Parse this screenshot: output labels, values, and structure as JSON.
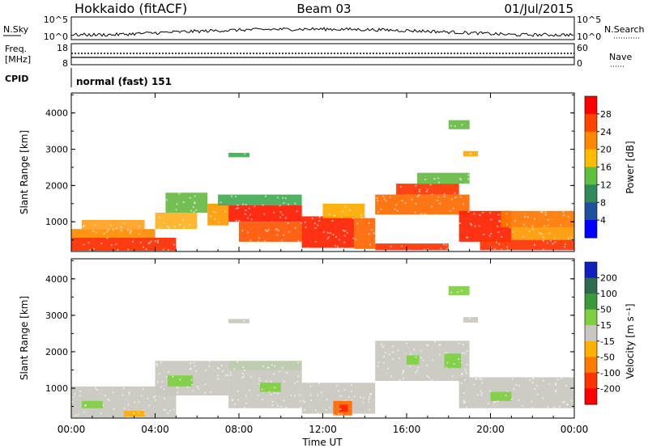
{
  "header": {
    "station": "Hokkaido (fitACF)",
    "beam": "Beam 03",
    "date": "01/Jul/2015"
  },
  "noise_panel": {
    "left_label": "N.Sky",
    "right_label": "N.Search",
    "left_ticks": [
      "10^5",
      "10^0"
    ],
    "right_ticks": [
      "10^5",
      "10^0"
    ]
  },
  "freq_panel": {
    "left_label_top": "Freq.",
    "left_label_bottom": "[MHz]",
    "right_label": "Nave",
    "left_ticks": [
      "18",
      "8"
    ],
    "right_ticks": [
      "60",
      "0"
    ]
  },
  "cpid_panel": {
    "label": "CPID",
    "text": "normal (fast) 151"
  },
  "chart_data": [
    {
      "type": "heatmap",
      "name": "power",
      "ylabel": "Slant Range [km]",
      "ylim": [
        180,
        4550
      ],
      "yticks": [
        "1000",
        "2000",
        "3000",
        "4000"
      ],
      "xticks": [
        "00:00",
        "04:00",
        "08:00",
        "12:00",
        "16:00",
        "20:00",
        "00:00"
      ],
      "xlim_hours": [
        0,
        24
      ],
      "colorbar": {
        "label": "Power [dB]",
        "ticks": [
          "28",
          "24",
          "20",
          "16",
          "12",
          "8",
          "4"
        ],
        "colors": [
          "#ff0000",
          "#ff4400",
          "#ff8800",
          "#ffbb00",
          "#5fbf3f",
          "#2e8b57",
          "#1e50a0",
          "#0000ff"
        ]
      },
      "regions": [
        {
          "t0": 0.0,
          "t1": 5.0,
          "r0": 200,
          "r1": 560,
          "color": "#ff2a00"
        },
        {
          "t0": 0.0,
          "t1": 4.0,
          "r0": 560,
          "r1": 800,
          "color": "#ff8c00"
        },
        {
          "t0": 0.5,
          "t1": 3.5,
          "r0": 800,
          "r1": 1050,
          "color": "#ffa020"
        },
        {
          "t0": 4.0,
          "t1": 6.0,
          "r0": 800,
          "r1": 1250,
          "color": "#ffb020"
        },
        {
          "t0": 4.5,
          "t1": 6.5,
          "r0": 1250,
          "r1": 1800,
          "color": "#66bb44"
        },
        {
          "t0": 6.5,
          "t1": 7.5,
          "r0": 900,
          "r1": 1500,
          "color": "#ff9900"
        },
        {
          "t0": 7.5,
          "t1": 11.0,
          "r0": 1000,
          "r1": 1450,
          "color": "#ff1a00"
        },
        {
          "t0": 8.0,
          "t1": 11.0,
          "r0": 450,
          "r1": 1000,
          "color": "#ff5500"
        },
        {
          "t0": 7.0,
          "t1": 11.0,
          "r0": 1450,
          "r1": 1750,
          "color": "#44aa55"
        },
        {
          "t0": 11.0,
          "t1": 13.5,
          "r0": 280,
          "r1": 1150,
          "color": "#ff2200"
        },
        {
          "t0": 13.5,
          "t1": 14.5,
          "r0": 250,
          "r1": 1100,
          "color": "#ff6600"
        },
        {
          "t0": 14.5,
          "t1": 19.0,
          "r0": 1200,
          "r1": 1750,
          "color": "#ff6a00"
        },
        {
          "t0": 15.5,
          "t1": 18.5,
          "r0": 1750,
          "r1": 2050,
          "color": "#ff3300"
        },
        {
          "t0": 16.5,
          "t1": 19.0,
          "r0": 2050,
          "r1": 2350,
          "color": "#66bb44"
        },
        {
          "t0": 18.5,
          "t1": 21.0,
          "r0": 450,
          "r1": 1300,
          "color": "#ff2200"
        },
        {
          "t0": 20.5,
          "t1": 24.0,
          "r0": 850,
          "r1": 1300,
          "color": "#ff7700"
        },
        {
          "t0": 19.5,
          "t1": 24.0,
          "r0": 220,
          "r1": 500,
          "color": "#ff3300"
        },
        {
          "t0": 21.0,
          "t1": 24.0,
          "r0": 500,
          "r1": 850,
          "color": "#ff9900"
        },
        {
          "t0": 14.5,
          "t1": 18.0,
          "r0": 220,
          "r1": 400,
          "color": "#ff3300"
        },
        {
          "t0": 12.0,
          "t1": 14.0,
          "r0": 1100,
          "r1": 1500,
          "color": "#ffaa00"
        },
        {
          "t0": 7.5,
          "t1": 8.5,
          "r0": 2780,
          "r1": 2900,
          "color": "#44aa55"
        },
        {
          "t0": 18.0,
          "t1": 19.0,
          "r0": 3550,
          "r1": 3800,
          "color": "#66bb44"
        },
        {
          "t0": 18.7,
          "t1": 19.4,
          "r0": 2800,
          "r1": 2950,
          "color": "#ffaa00"
        }
      ]
    },
    {
      "type": "heatmap",
      "name": "velocity",
      "ylabel": "Slant Range [km]",
      "ylim": [
        180,
        4550
      ],
      "yticks": [
        "1000",
        "2000",
        "3000",
        "4000"
      ],
      "xticks": [
        "00:00",
        "04:00",
        "08:00",
        "12:00",
        "16:00",
        "20:00",
        "00:00"
      ],
      "xlim_hours": [
        0,
        24
      ],
      "colorbar": {
        "label": "Velocity [m s⁻¹]",
        "ticks": [
          "200",
          "100",
          "50",
          "15",
          "-15",
          "-50",
          "-100",
          "-200"
        ],
        "colors": [
          "#1020c0",
          "#2e6a50",
          "#3a9a3a",
          "#7fd040",
          "#c8c8c0",
          "#ffb000",
          "#ff7a00",
          "#ff3300",
          "#ff0000"
        ]
      },
      "regions": [
        {
          "t0": 0.0,
          "t1": 5.0,
          "r0": 200,
          "r1": 1050,
          "color": "#c8c8c0"
        },
        {
          "t0": 4.0,
          "t1": 7.5,
          "r0": 800,
          "r1": 1750,
          "color": "#c8c8c0"
        },
        {
          "t0": 4.6,
          "t1": 5.8,
          "r0": 1050,
          "r1": 1350,
          "color": "#7fd040"
        },
        {
          "t0": 7.5,
          "t1": 11.0,
          "r0": 450,
          "r1": 1500,
          "color": "#c8c8c0"
        },
        {
          "t0": 7.5,
          "t1": 11.0,
          "r0": 1500,
          "r1": 1750,
          "color": "#b8c8a8"
        },
        {
          "t0": 9.0,
          "t1": 10.0,
          "r0": 900,
          "r1": 1150,
          "color": "#7fd040"
        },
        {
          "t0": 11.0,
          "t1": 14.5,
          "r0": 300,
          "r1": 1150,
          "color": "#c8c8c0"
        },
        {
          "t0": 12.5,
          "t1": 13.4,
          "r0": 250,
          "r1": 650,
          "color": "#ff6a00"
        },
        {
          "t0": 12.8,
          "t1": 13.2,
          "r0": 350,
          "r1": 550,
          "color": "#ff2200"
        },
        {
          "t0": 14.5,
          "t1": 19.0,
          "r0": 1200,
          "r1": 2300,
          "color": "#c8c8c0"
        },
        {
          "t0": 16.0,
          "t1": 16.6,
          "r0": 1650,
          "r1": 1900,
          "color": "#7fd040"
        },
        {
          "t0": 17.8,
          "t1": 18.6,
          "r0": 1550,
          "r1": 1950,
          "color": "#7fd040"
        },
        {
          "t0": 18.5,
          "t1": 24.0,
          "r0": 450,
          "r1": 1300,
          "color": "#c8c8c0"
        },
        {
          "t0": 20.0,
          "t1": 21.0,
          "r0": 650,
          "r1": 900,
          "color": "#7fd040"
        },
        {
          "t0": 0.5,
          "t1": 1.5,
          "r0": 450,
          "r1": 650,
          "color": "#7fd040"
        },
        {
          "t0": 2.5,
          "t1": 3.5,
          "r0": 220,
          "r1": 380,
          "color": "#ffb000"
        },
        {
          "t0": 7.5,
          "t1": 8.5,
          "r0": 2780,
          "r1": 2900,
          "color": "#c8c8c0"
        },
        {
          "t0": 18.0,
          "t1": 19.0,
          "r0": 3550,
          "r1": 3800,
          "color": "#7fd040"
        },
        {
          "t0": 18.7,
          "t1": 19.4,
          "r0": 2800,
          "r1": 2950,
          "color": "#c8c8c0"
        }
      ]
    }
  ],
  "xaxis_label": "Time UT"
}
